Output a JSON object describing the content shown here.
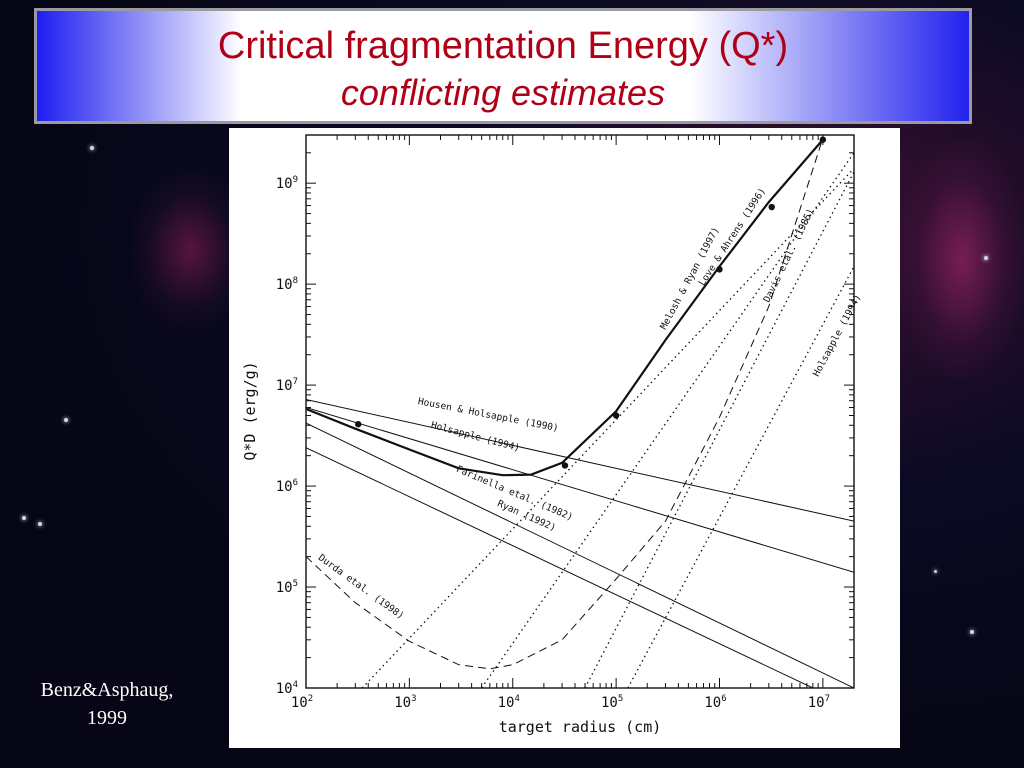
{
  "slide": {
    "title_line1": "Critical fragmentation Energy (Q*)",
    "title_line2": "conflicting estimates",
    "citation_line1": "Benz&Asphaug,",
    "citation_line2": "1999"
  },
  "chart_data": {
    "type": "line",
    "xlabel": "target radius (cm)",
    "ylabel": "Q*D (erg/g)",
    "x_scale": "log",
    "y_scale": "log",
    "xlim": [
      100,
      20000000
    ],
    "ylim": [
      10000,
      3000000000
    ],
    "x_ticks": [
      {
        "value": 100,
        "base": "10",
        "exp": "2"
      },
      {
        "value": 1000,
        "base": "10",
        "exp": "3"
      },
      {
        "value": 10000,
        "base": "10",
        "exp": "4"
      },
      {
        "value": 100000,
        "base": "10",
        "exp": "5"
      },
      {
        "value": 1000000,
        "base": "10",
        "exp": "6"
      },
      {
        "value": 10000000,
        "base": "10",
        "exp": "7"
      }
    ],
    "y_ticks": [
      {
        "value": 10000,
        "base": "10",
        "exp": "4"
      },
      {
        "value": 100000,
        "base": "10",
        "exp": "5"
      },
      {
        "value": 1000000,
        "base": "10",
        "exp": "6"
      },
      {
        "value": 10000000,
        "base": "10",
        "exp": "7"
      },
      {
        "value": 100000000,
        "base": "10",
        "exp": "8"
      },
      {
        "value": 1000000000,
        "base": "10",
        "exp": "9"
      }
    ],
    "series": [
      {
        "name": "Housen & Holsapple (1990)",
        "style": "solid",
        "width": 1,
        "x": [
          100,
          20000000
        ],
        "y": [
          7200000,
          450000
        ],
        "label_at": [
          1200,
          6500000
        ],
        "label_angle": 11
      },
      {
        "name": "Holsapple (1994)",
        "style": "solid",
        "width": 1,
        "x": [
          100,
          20000000
        ],
        "y": [
          6000000,
          140000
        ],
        "label_at": [
          1600,
          3800000
        ],
        "label_angle": 15
      },
      {
        "name": "Farinella etal. (1982)",
        "style": "solid",
        "width": 1,
        "x": [
          100,
          20000000
        ],
        "y": [
          4200000,
          10000
        ],
        "label_at": [
          2800,
          1400000
        ],
        "label_angle": 23
      },
      {
        "name": "Ryan (1992)",
        "style": "solid",
        "width": 1,
        "x": [
          100,
          8000000
        ],
        "y": [
          2400000,
          10000
        ],
        "label_at": [
          7000,
          640000
        ],
        "label_angle": 24
      },
      {
        "name": "Durda etal. (1998)",
        "style": "dashed",
        "width": 1,
        "x": [
          100,
          300,
          1000,
          3000,
          6000,
          10000,
          30000,
          100000,
          300000,
          1000000,
          3000000,
          10000000
        ],
        "y": [
          200000,
          70000,
          29000,
          17000,
          15500,
          17000,
          30000,
          120000,
          450000,
          4800000,
          60000000,
          2800000000
        ],
        "label_at": [
          130,
          190000
        ],
        "label_angle": 36
      },
      {
        "name": "Love & Ahrens (1996)",
        "style": "dotted",
        "width": 1,
        "x": [
          350,
          20000000
        ],
        "y": [
          10000,
          1400000000
        ],
        "label_at": [
          700000,
          95000000
        ],
        "label_angle": -57
      },
      {
        "name": "Melosh & Ryan (1997)",
        "style": "dotted",
        "width": 1,
        "x": [
          5000,
          20000000
        ],
        "y": [
          10000,
          2000000000
        ],
        "label_at": [
          300000,
          35000000
        ],
        "label_angle": -62
      },
      {
        "name": "Davis etal. (1985)",
        "style": "dotted",
        "width": 1,
        "x": [
          50000,
          20000000
        ],
        "y": [
          10000,
          1300000000
        ],
        "label_at": [
          3000000,
          65000000
        ],
        "label_angle": -64
      },
      {
        "name": "Holsapple (1994)",
        "style": "dotted",
        "width": 1,
        "x": [
          130000,
          20000000
        ],
        "y": [
          10000,
          150000000
        ],
        "label_at": [
          9000000,
          12000000
        ],
        "label_angle": -62
      },
      {
        "name": "",
        "style": "solid",
        "width": 2.2,
        "x": [
          100,
          300,
          1000,
          3000,
          8000,
          15000,
          30000,
          100000,
          300000,
          1000000,
          3000000,
          10000000
        ],
        "y": [
          5800000,
          3700000,
          2300000,
          1500000,
          1280000,
          1300000,
          1700000,
          5500000,
          28000000,
          150000000,
          650000000,
          2700000000
        ]
      }
    ],
    "points": {
      "x": [
        320,
        32000,
        100000,
        1000000,
        3200000,
        10000000
      ],
      "y": [
        4100000,
        1600000,
        5000000,
        140000000,
        580000000,
        2700000000
      ]
    }
  }
}
